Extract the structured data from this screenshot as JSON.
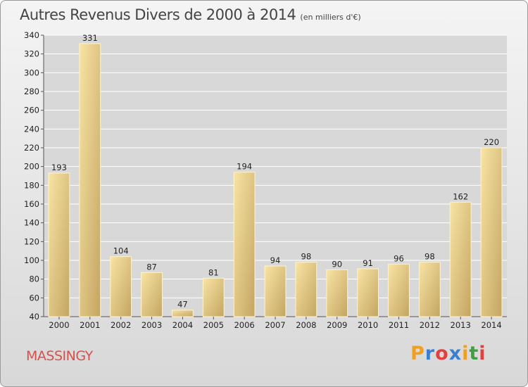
{
  "chart_data": {
    "type": "bar",
    "title": "Autres Revenus Divers de 2000 à 2014",
    "subtitle": "(en milliers d'€)",
    "categories": [
      "2000",
      "2001",
      "2002",
      "2003",
      "2004",
      "2005",
      "2006",
      "2007",
      "2008",
      "2009",
      "2010",
      "2011",
      "2012",
      "2013",
      "2014"
    ],
    "values": [
      193,
      331,
      104,
      87,
      47,
      81,
      194,
      94,
      98,
      90,
      91,
      96,
      98,
      162,
      220
    ],
    "ylim": [
      40,
      340
    ],
    "yticks": [
      40,
      60,
      80,
      100,
      120,
      140,
      160,
      180,
      200,
      220,
      240,
      260,
      280,
      300,
      320,
      340
    ],
    "grid": true,
    "xlabel": "",
    "ylabel": ""
  },
  "footer": {
    "commune": "MASSINGY",
    "logo_letters": [
      "P",
      "r",
      "o",
      "x",
      "i",
      "t",
      "i"
    ],
    "logo_colors": [
      "#f0a020",
      "#3a7fd0",
      "#e04040",
      "#3a7fd0",
      "#f0a020",
      "#40a040",
      "#e04040"
    ]
  },
  "colors": {
    "bar_light": "#f7e1a0",
    "bar_dark": "#c6a864",
    "grid": "#ffffff",
    "commune": "#d8504a"
  }
}
